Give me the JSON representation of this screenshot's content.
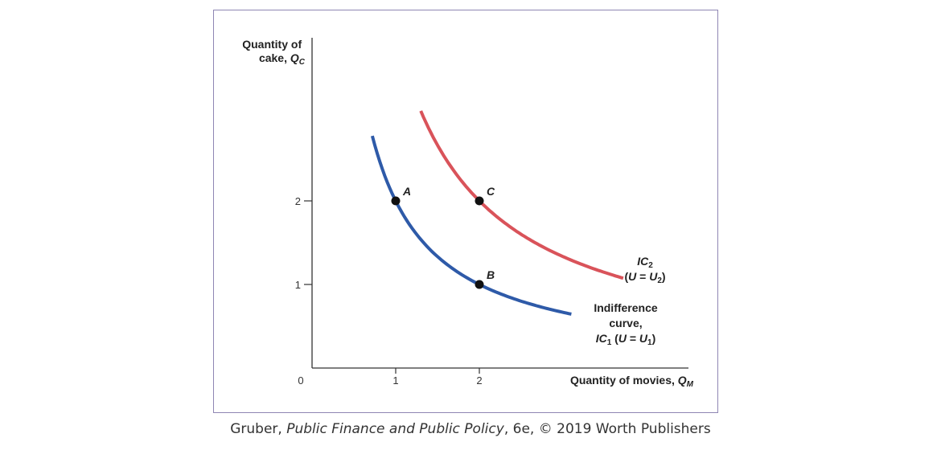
{
  "chart_data": {
    "type": "line",
    "ylabel": {
      "line1": "Quantity of",
      "line2_text": "cake, ",
      "symbol": "Q",
      "sub": "C"
    },
    "xlabel": {
      "text": "Quantity of movies, ",
      "symbol": "Q",
      "sub": "M"
    },
    "origin_label": "0",
    "x_ticks": [
      {
        "value": 1,
        "label": "1"
      },
      {
        "value": 2,
        "label": "2"
      }
    ],
    "y_ticks": [
      {
        "value": 1,
        "label": "1"
      },
      {
        "value": 2,
        "label": "2"
      }
    ],
    "xlim": [
      0,
      4.6
    ],
    "ylim": [
      0,
      3.95
    ],
    "series": [
      {
        "id": "ic1",
        "k": 2,
        "x_range": [
          0.72,
          3.1
        ],
        "color": "#2e5aa8",
        "label_lines": [
          {
            "parts": [
              {
                "text": "Indifference",
                "italic": false
              }
            ]
          },
          {
            "parts": [
              {
                "text": "curve,",
                "italic": false
              }
            ]
          },
          {
            "parts": [
              {
                "text": "IC",
                "italic": true
              },
              {
                "text": "1",
                "sub": true
              },
              {
                "text": " (",
                "italic": false
              },
              {
                "text": "U",
                "italic": true
              },
              {
                "text": " = ",
                "italic": false
              },
              {
                "text": "U",
                "italic": true
              },
              {
                "text": "1",
                "sub": true
              },
              {
                "text": ")",
                "italic": false
              }
            ]
          }
        ]
      },
      {
        "id": "ic2",
        "k": 4,
        "x_range": [
          1.3,
          3.72
        ],
        "color": "#d9535a",
        "label_lines": [
          {
            "parts": [
              {
                "text": "IC",
                "italic": true
              },
              {
                "text": "2",
                "sub": true
              }
            ]
          },
          {
            "parts": [
              {
                "text": "(",
                "italic": false
              },
              {
                "text": "U",
                "italic": true
              },
              {
                "text": " = ",
                "italic": false
              },
              {
                "text": "U",
                "italic": true
              },
              {
                "text": "2",
                "sub": true
              },
              {
                "text": ")",
                "italic": false
              }
            ]
          }
        ]
      }
    ],
    "points": [
      {
        "label": "A",
        "x": 1,
        "y": 2
      },
      {
        "label": "B",
        "x": 2,
        "y": 1
      },
      {
        "label": "C",
        "x": 2,
        "y": 2
      }
    ]
  },
  "credit": {
    "author": "Gruber, ",
    "title": "Public Finance and Public Policy",
    "rest": ", 6e, © 2019 Worth Publishers"
  }
}
